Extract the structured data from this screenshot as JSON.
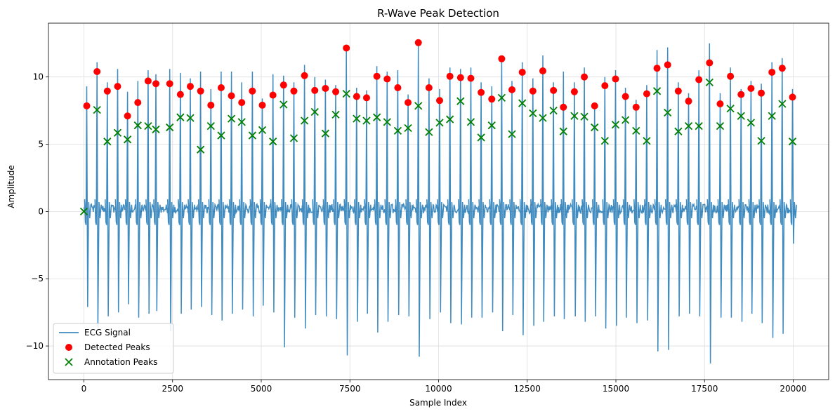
{
  "chart_data": {
    "type": "scatter",
    "title": "R-Wave Peak Detection",
    "xlabel": "Sample Index",
    "ylabel": "Amplitude",
    "xlim": [
      -1000,
      21000
    ],
    "ylim": [
      -12.5,
      14
    ],
    "xticks": [
      0,
      2500,
      5000,
      7500,
      10000,
      12500,
      15000,
      17500,
      20000
    ],
    "xtick_labels": [
      "0",
      "2500",
      "5000",
      "7500",
      "10000",
      "12500",
      "15000",
      "17500",
      "20000"
    ],
    "yticks": [
      -10,
      -5,
      0,
      5,
      10
    ],
    "ytick_labels": [
      "−10",
      "−5",
      "0",
      "5",
      "10"
    ],
    "grid": true,
    "legend_position": "bottom-left",
    "series": [
      {
        "name": "ECG Signal",
        "kind": "line",
        "color": "#1f77b4",
        "beats_x": [
          80,
          370,
          660,
          950,
          1230,
          1520,
          1810,
          2030,
          2420,
          2720,
          3000,
          3290,
          3580,
          3870,
          4160,
          4450,
          4750,
          5030,
          5330,
          5630,
          5920,
          6220,
          6510,
          6810,
          7100,
          7400,
          7690,
          7970,
          8260,
          8550,
          8850,
          9140,
          9430,
          9730,
          10030,
          10320,
          10620,
          10910,
          11200,
          11500,
          11780,
          12070,
          12360,
          12660,
          12940,
          13240,
          13520,
          13830,
          14110,
          14400,
          14690,
          14990,
          15270,
          15570,
          15870,
          16160,
          16460,
          16760,
          17050,
          17340,
          17640,
          17940,
          18230,
          18530,
          18810,
          19100,
          19400,
          19690,
          19980
        ],
        "r_peak": [
          9.3,
          11.1,
          9.6,
          10.6,
          8.9,
          9.7,
          10.5,
          10.2,
          10.6,
          10.3,
          9.9,
          10.4,
          9.1,
          10.4,
          10.4,
          9.6,
          10.4,
          8.4,
          10.2,
          10.1,
          9.6,
          10.9,
          10.0,
          9.8,
          9.4,
          12.2,
          9.2,
          9.0,
          10.8,
          10.4,
          10.5,
          8.7,
          12.7,
          9.9,
          9.1,
          10.7,
          10.6,
          10.7,
          9.6,
          9.3,
          11.4,
          9.7,
          11.1,
          9.9,
          11.6,
          9.6,
          10.4,
          9.6,
          10.7,
          8.1,
          10.0,
          10.5,
          9.2,
          8.3,
          9.4,
          12.0,
          12.2,
          9.6,
          8.8,
          10.5,
          12.5,
          8.8,
          10.7,
          9.1,
          9.7,
          9.5,
          11.1,
          11.4,
          9.1
        ],
        "s_trough": [
          -7.1,
          -8.6,
          -7.8,
          -7.5,
          -6.9,
          -7.9,
          -7.6,
          -7.4,
          -8.9,
          -7.6,
          -7.3,
          -7.1,
          -7.7,
          -8.1,
          -7.6,
          -7.3,
          -7.8,
          -7.0,
          -7.5,
          -10.1,
          -7.9,
          -8.7,
          -7.7,
          -7.8,
          -8.0,
          -10.7,
          -8.2,
          -7.6,
          -9.0,
          -8.2,
          -7.7,
          -7.8,
          -10.8,
          -8.0,
          -7.5,
          -8.3,
          -8.4,
          -7.9,
          -7.9,
          -7.5,
          -8.9,
          -7.7,
          -9.2,
          -8.5,
          -8.2,
          -7.8,
          -8.0,
          -7.8,
          -8.2,
          -7.8,
          -8.7,
          -8.5,
          -7.9,
          -8.3,
          -8.1,
          -10.4,
          -10.3,
          -7.8,
          -7.6,
          -7.8,
          -11.3,
          -7.9,
          -7.9,
          -8.2,
          -7.6,
          -8.3,
          -9.4,
          -9.1,
          -2.4
        ]
      },
      {
        "name": "Detected Peaks",
        "kind": "scatter",
        "marker": "o",
        "color": "#ff0000",
        "x": [
          80,
          370,
          660,
          950,
          1230,
          1520,
          1810,
          2030,
          2420,
          2720,
          3000,
          3290,
          3580,
          3870,
          4160,
          4450,
          4750,
          5030,
          5330,
          5630,
          5920,
          6220,
          6510,
          6810,
          7100,
          7400,
          7690,
          7970,
          8260,
          8550,
          8850,
          9140,
          9430,
          9730,
          10030,
          10320,
          10620,
          10910,
          11200,
          11500,
          11780,
          12070,
          12360,
          12660,
          12940,
          13240,
          13520,
          13830,
          14110,
          14400,
          14690,
          14990,
          15270,
          15570,
          15870,
          16160,
          16460,
          16760,
          17050,
          17340,
          17640,
          17940,
          18230,
          18530,
          18810,
          19100,
          19400,
          19690,
          19980
        ],
        "y": [
          7.85,
          10.4,
          8.95,
          9.3,
          7.1,
          8.1,
          9.7,
          9.5,
          9.5,
          8.7,
          9.3,
          8.95,
          7.9,
          9.2,
          8.6,
          8.1,
          8.95,
          7.9,
          8.65,
          9.4,
          8.95,
          10.1,
          9.0,
          9.15,
          8.9,
          12.15,
          8.55,
          8.45,
          10.05,
          9.85,
          9.2,
          8.1,
          12.55,
          9.2,
          8.25,
          10.05,
          9.95,
          9.9,
          8.85,
          8.35,
          11.35,
          9.05,
          10.35,
          8.95,
          10.45,
          9.0,
          7.75,
          8.9,
          10.0,
          7.85,
          9.35,
          9.85,
          8.55,
          7.75,
          8.75,
          10.65,
          10.9,
          8.95,
          8.2,
          9.8,
          11.05,
          8.0,
          10.05,
          8.7,
          9.15,
          8.8,
          10.35,
          10.65,
          8.5
        ]
      },
      {
        "name": "Annotation Peaks",
        "kind": "scatter",
        "marker": "x",
        "color": "#008000",
        "x": [
          0,
          370,
          660,
          950,
          1230,
          1520,
          1810,
          2030,
          2420,
          2720,
          3000,
          3290,
          3580,
          3870,
          4160,
          4450,
          4750,
          5030,
          5330,
          5630,
          5920,
          6220,
          6510,
          6810,
          7100,
          7400,
          7690,
          7970,
          8260,
          8550,
          8850,
          9140,
          9430,
          9730,
          10030,
          10320,
          10620,
          10910,
          11200,
          11500,
          11780,
          12070,
          12360,
          12660,
          12940,
          13240,
          13520,
          13830,
          14110,
          14400,
          14690,
          14990,
          15270,
          15570,
          15870,
          16160,
          16460,
          16760,
          17050,
          17340,
          17640,
          17940,
          18230,
          18530,
          18810,
          19100,
          19400,
          19690,
          19980
        ],
        "y": [
          0.0,
          7.55,
          5.2,
          5.85,
          5.35,
          6.4,
          6.35,
          6.1,
          6.25,
          7.0,
          6.95,
          4.6,
          6.35,
          5.65,
          6.9,
          6.65,
          5.65,
          6.05,
          5.2,
          7.95,
          5.45,
          6.75,
          7.4,
          5.8,
          7.2,
          8.75,
          6.9,
          6.75,
          7.0,
          6.65,
          6.0,
          6.2,
          7.85,
          5.9,
          6.6,
          6.85,
          8.2,
          6.65,
          5.5,
          6.4,
          8.45,
          5.75,
          8.05,
          7.3,
          6.95,
          7.5,
          5.95,
          7.1,
          7.05,
          6.25,
          5.25,
          6.45,
          6.8,
          6.0,
          5.25,
          8.95,
          7.35,
          5.95,
          6.35,
          6.35,
          9.6,
          6.35,
          7.65,
          7.1,
          6.6,
          5.25,
          7.1,
          8.0,
          5.2
        ]
      }
    ]
  }
}
